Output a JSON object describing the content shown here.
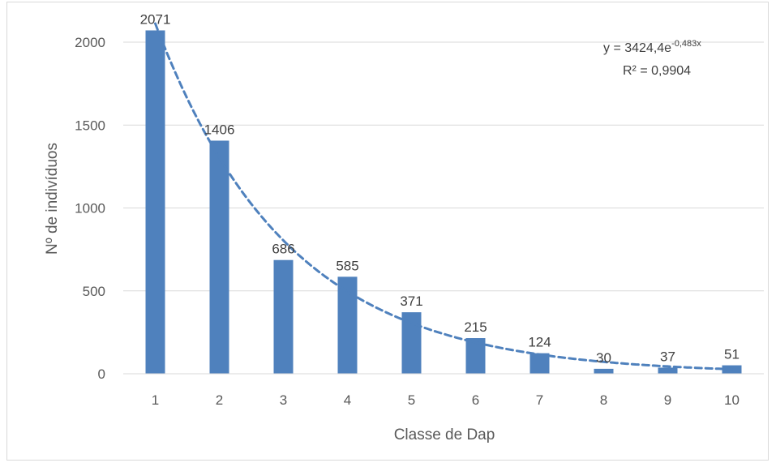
{
  "chart_data": {
    "type": "bar",
    "xlabel": "Classe de Dap",
    "ylabel": "Nº de indivíduos",
    "categories": [
      "1",
      "2",
      "3",
      "4",
      "5",
      "6",
      "7",
      "8",
      "9",
      "10"
    ],
    "values": [
      2071,
      1406,
      686,
      585,
      371,
      215,
      124,
      30,
      37,
      51
    ],
    "ylim": [
      0,
      2000
    ],
    "yticks": [
      0,
      500,
      1000,
      1500,
      2000
    ],
    "grid": true,
    "legend": "none",
    "bar_color": "#4f81bd",
    "trendline": {
      "type": "exponential",
      "a": 3424.4,
      "b": -0.483,
      "equation_prefix": "y = 3424,4e",
      "equation_exponent": "-0,483x",
      "r_squared_label": "R² = 0,9904",
      "color": "#4f81bd",
      "style": "dashed"
    }
  }
}
